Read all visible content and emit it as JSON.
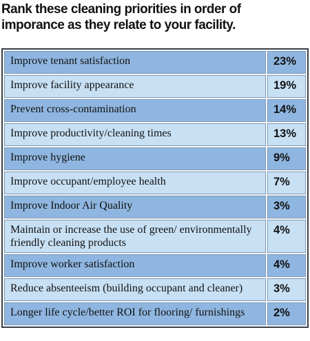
{
  "title": "Rank these cleaning priorities in order of imporance as they relate to your facility.",
  "table": {
    "rows": [
      [
        "Improve tenant satisfaction",
        "23%"
      ],
      [
        "Improve facility appearance",
        "19%"
      ],
      [
        "Prevent cross-contamination",
        "14%"
      ],
      [
        "Improve productivity/cleaning times",
        "13%"
      ],
      [
        "Improve hygiene",
        "9%"
      ],
      [
        "Improve occupant/employee health",
        "7%"
      ],
      [
        "Improve Indoor Air Quality",
        "3%"
      ],
      [
        "Maintain or increase the use of green/ environmentally friendly cleaning products",
        "4%"
      ],
      [
        "Improve worker satisfaction",
        "4%"
      ],
      [
        "Reduce absenteeism (building occupant and cleaner)",
        "3%"
      ],
      [
        "Longer life cycle/better ROI for flooring/ furnishings",
        "2%"
      ]
    ]
  }
}
